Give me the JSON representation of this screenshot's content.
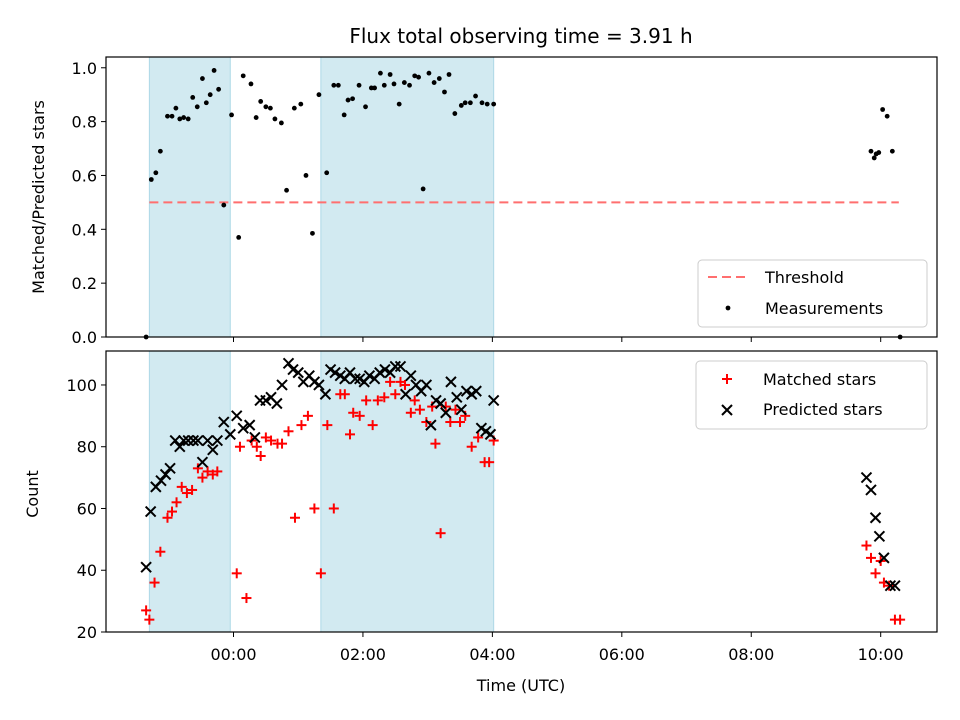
{
  "colors": {
    "band": "#add8e6",
    "threshold": "#ff6f6f",
    "measurement": "#000000",
    "matched": "#ff0000",
    "predicted": "#000000"
  },
  "chart_data": [
    {
      "type": "scatter",
      "title": "Flux total observing time = 3.91 h",
      "xlabel": "",
      "ylabel": "Matched/Predicted stars",
      "ylim": [
        0.0,
        1.04
      ],
      "yticks": [
        "0.0",
        "0.2",
        "0.4",
        "0.6",
        "0.8",
        "1.0"
      ],
      "ytick_values": [
        0.0,
        0.2,
        0.4,
        0.6,
        0.8,
        1.0
      ],
      "xlim_hours": [
        -1.97,
        10.87
      ],
      "xtick_values_hours": [
        0,
        2,
        4,
        6,
        8,
        10
      ],
      "xtick_labels_shown": false,
      "grid": false,
      "legend_position": "lower-right",
      "legend_labels": [
        "Threshold",
        "Measurements"
      ],
      "threshold": {
        "label": "Threshold",
        "y": 0.5,
        "x_range_hours": [
          -1.3,
          10.28
        ],
        "style": "dashed"
      },
      "shaded_intervals_hours": [
        [
          -1.3,
          -0.05
        ],
        [
          1.35,
          4.02
        ]
      ],
      "series": [
        {
          "name": "Measurements",
          "marker": "dot",
          "x_hours": [
            -1.35,
            -1.27,
            -1.2,
            -1.13,
            -1.02,
            -0.95,
            -0.89,
            -0.83,
            -0.77,
            -0.7,
            -0.63,
            -0.56,
            -0.48,
            -0.42,
            -0.36,
            -0.3,
            -0.23,
            -0.15,
            -0.03,
            0.08,
            0.15,
            0.27,
            0.35,
            0.42,
            0.5,
            0.57,
            0.64,
            0.74,
            0.82,
            0.94,
            1.04,
            1.12,
            1.22,
            1.32,
            1.44,
            1.55,
            1.62,
            1.71,
            1.77,
            1.84,
            1.94,
            2.04,
            2.13,
            2.18,
            2.27,
            2.33,
            2.42,
            2.48,
            2.56,
            2.64,
            2.72,
            2.8,
            2.86,
            2.93,
            3.02,
            3.1,
            3.18,
            3.26,
            3.33,
            3.42,
            3.52,
            3.58,
            3.66,
            3.74,
            3.84,
            3.92,
            4.02,
            9.85,
            9.9,
            9.93,
            9.97,
            10.03,
            10.1,
            10.18,
            10.3
          ],
          "y": [
            0.0,
            0.585,
            0.61,
            0.69,
            0.82,
            0.82,
            0.85,
            0.81,
            0.815,
            0.81,
            0.89,
            0.855,
            0.96,
            0.87,
            0.9,
            0.99,
            0.92,
            0.49,
            0.825,
            0.37,
            0.97,
            0.94,
            0.815,
            0.875,
            0.855,
            0.85,
            0.81,
            0.795,
            0.545,
            0.85,
            0.865,
            0.6,
            0.385,
            0.9,
            0.61,
            0.935,
            0.935,
            0.825,
            0.88,
            0.885,
            0.935,
            0.855,
            0.925,
            0.925,
            0.98,
            0.935,
            0.975,
            0.94,
            0.865,
            0.945,
            0.935,
            0.97,
            0.965,
            0.55,
            0.98,
            0.945,
            0.96,
            0.91,
            0.975,
            0.83,
            0.86,
            0.87,
            0.87,
            0.895,
            0.87,
            0.865,
            0.865,
            0.69,
            0.665,
            0.68,
            0.685,
            0.845,
            0.82,
            0.69,
            0.0
          ]
        }
      ]
    },
    {
      "type": "scatter",
      "title": "",
      "xlabel": "Time (UTC)",
      "ylabel": "Count",
      "ylim": [
        20,
        111
      ],
      "yticks": [
        "20",
        "40",
        "60",
        "80",
        "100"
      ],
      "ytick_values": [
        20,
        40,
        60,
        80,
        100
      ],
      "xlim_hours": [
        -1.97,
        10.87
      ],
      "xtick_values_hours": [
        0,
        2,
        4,
        6,
        8,
        10
      ],
      "xticks": [
        "00:00",
        "02:00",
        "04:00",
        "06:00",
        "08:00",
        "10:00"
      ],
      "grid": false,
      "legend_position": "upper-right",
      "legend_labels": [
        "Matched stars",
        "Predicted stars"
      ],
      "shaded_intervals_hours": [
        [
          -1.3,
          -0.05
        ],
        [
          1.35,
          4.02
        ]
      ],
      "series": [
        {
          "name": "Matched stars",
          "marker": "plus",
          "x_hours": [
            -1.35,
            -1.3,
            -1.22,
            -1.13,
            -1.02,
            -0.95,
            -0.88,
            -0.8,
            -0.72,
            -0.64,
            -0.55,
            -0.48,
            -0.4,
            -0.32,
            -0.25,
            0.05,
            0.1,
            0.2,
            0.28,
            0.36,
            0.42,
            0.5,
            0.58,
            0.68,
            0.75,
            0.85,
            0.95,
            1.05,
            1.15,
            1.25,
            1.35,
            1.45,
            1.55,
            1.65,
            1.72,
            1.8,
            1.85,
            1.95,
            2.05,
            2.15,
            2.23,
            2.33,
            2.42,
            2.5,
            2.58,
            2.65,
            2.74,
            2.8,
            2.88,
            2.98,
            3.07,
            3.12,
            3.2,
            3.28,
            3.35,
            3.43,
            3.5,
            3.58,
            3.68,
            3.78,
            3.88,
            3.95,
            4.02,
            9.78,
            9.85,
            9.92,
            10.0,
            10.05,
            10.13,
            10.22,
            10.3
          ],
          "y": [
            27,
            24,
            36,
            46,
            57,
            59,
            62,
            67,
            65,
            66,
            73,
            70,
            72,
            71,
            72,
            39,
            80,
            31,
            82,
            80,
            77,
            83,
            82,
            81,
            81,
            85,
            57,
            87,
            90,
            60,
            39,
            87,
            60,
            97,
            97,
            84,
            91,
            90,
            95,
            87,
            95,
            96,
            101,
            97,
            101,
            100,
            91,
            95,
            92,
            88,
            93,
            81,
            52,
            93,
            88,
            92,
            88,
            90,
            80,
            83,
            75,
            75,
            82,
            48,
            44,
            39,
            43,
            36,
            35,
            24,
            24
          ]
        },
        {
          "name": "Predicted stars",
          "marker": "x",
          "x_hours": [
            -1.35,
            -1.28,
            -1.2,
            -1.12,
            -1.05,
            -0.98,
            -0.9,
            -0.83,
            -0.77,
            -0.7,
            -0.62,
            -0.55,
            -0.48,
            -0.4,
            -0.32,
            -0.25,
            -0.15,
            -0.05,
            0.05,
            0.15,
            0.25,
            0.33,
            0.41,
            0.5,
            0.58,
            0.67,
            0.75,
            0.85,
            0.92,
            1.0,
            1.08,
            1.17,
            1.25,
            1.32,
            1.42,
            1.5,
            1.57,
            1.65,
            1.72,
            1.8,
            1.88,
            1.95,
            2.02,
            2.1,
            2.18,
            2.26,
            2.34,
            2.42,
            2.5,
            2.58,
            2.66,
            2.74,
            2.82,
            2.9,
            2.98,
            3.05,
            3.13,
            3.2,
            3.28,
            3.36,
            3.45,
            3.52,
            3.6,
            3.68,
            3.75,
            3.83,
            3.9,
            3.97,
            4.02,
            9.78,
            9.85,
            9.92,
            9.98,
            10.05,
            10.15,
            10.22
          ],
          "y": [
            41,
            59,
            67,
            69,
            71,
            73,
            82,
            80,
            82,
            82,
            82,
            82,
            75,
            82,
            79,
            82,
            88,
            84,
            90,
            86,
            87,
            83,
            95,
            95,
            96,
            94,
            100,
            107,
            105,
            104,
            101,
            103,
            101,
            100,
            97,
            105,
            104,
            103,
            102,
            104,
            102,
            102,
            101,
            103,
            102,
            104,
            105,
            104,
            106,
            106,
            97,
            103,
            100,
            98,
            100,
            87,
            95,
            94,
            91,
            101,
            96,
            92,
            98,
            97,
            98,
            86,
            85,
            84,
            95,
            70,
            66,
            57,
            51,
            44,
            35,
            35
          ]
        }
      ]
    }
  ]
}
